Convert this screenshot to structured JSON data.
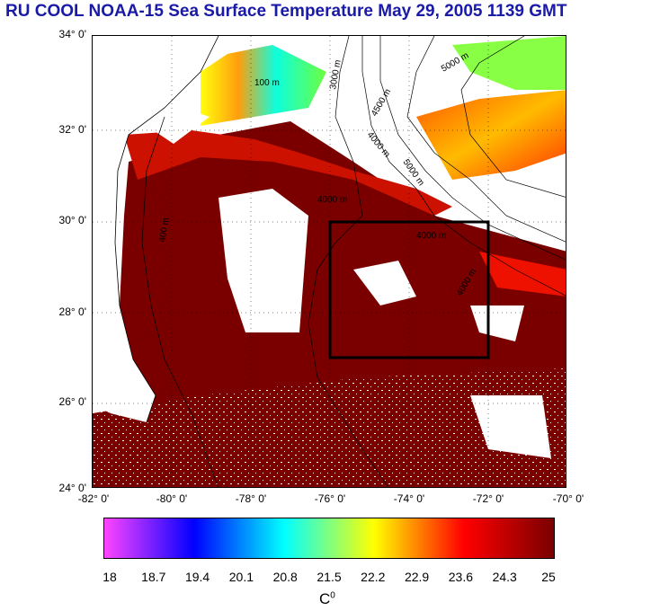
{
  "title": "RU COOL  NOAA-15 Sea Surface Temperature May 29, 2005 1139 GMT",
  "lat_labels": [
    "34° 0'",
    "32° 0'",
    "30° 0'",
    "28° 0'",
    "26° 0'",
    "24° 0'"
  ],
  "lon_labels": [
    "-82° 0'",
    "-80° 0'",
    "-78° 0'",
    "-76° 0'",
    "-74° 0'",
    "-72° 0'",
    "-70° 0'"
  ],
  "contour_labels": [
    "100 m",
    "3000 m",
    "5000 m",
    "4500 m",
    "4000 m",
    "5000 m",
    "4000 m",
    "4000 m",
    "400 m",
    "4000 m"
  ],
  "colorbar": {
    "ticks": [
      "18",
      "18.7",
      "19.4",
      "20.1",
      "20.8",
      "21.5",
      "22.2",
      "22.9",
      "23.6",
      "24.3",
      "25"
    ],
    "unit_base": "C",
    "unit_sup": "0",
    "colors": [
      "#ff44ff",
      "#0000ff",
      "#00ffff",
      "#ffff00",
      "#ff0000",
      "#7a0000"
    ]
  },
  "region_box": {
    "lon_min": -76,
    "lon_max": -72,
    "lat_min": 27,
    "lat_max": 30
  },
  "map_extent": {
    "lon_min": -82,
    "lon_max": -70,
    "lat_min": 24,
    "lat_max": 34
  }
}
